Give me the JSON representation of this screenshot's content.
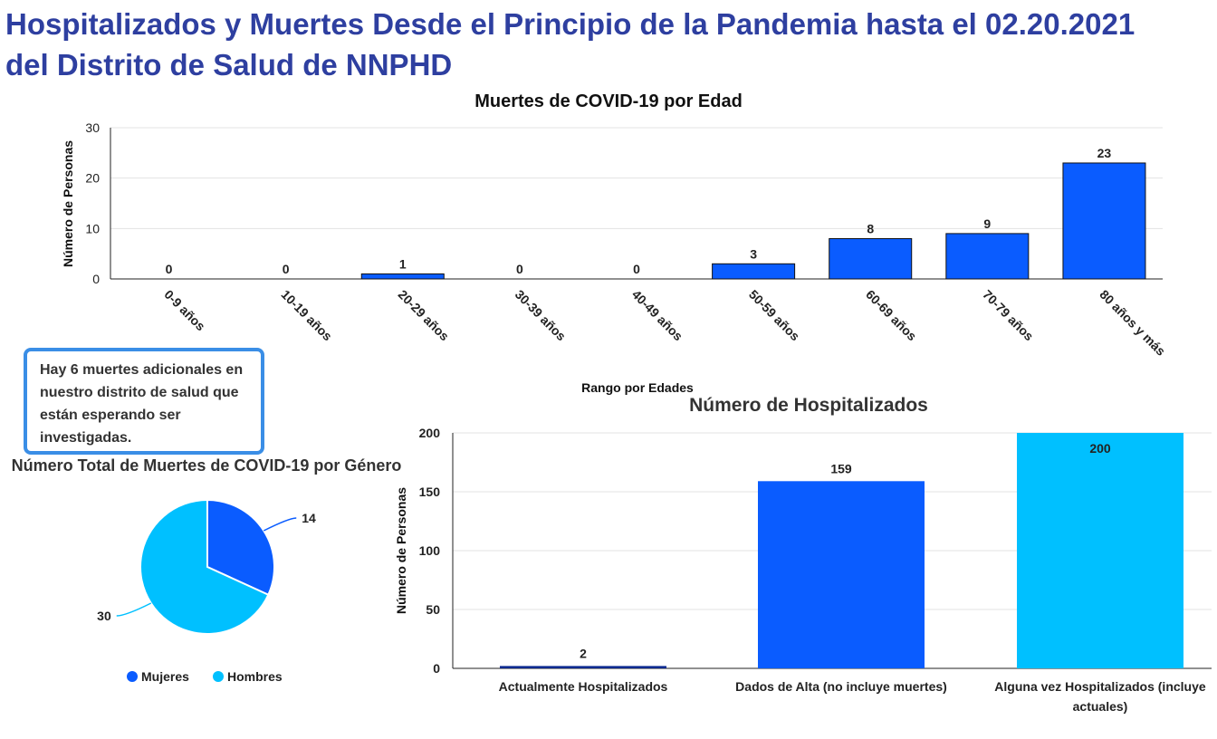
{
  "page": {
    "title_line1": "Hospitalizados y Muertes Desde el Principio de la Pandemia hasta el 02.20.2021",
    "title_line2": "del Distrito de Salud de NNPHD",
    "note_text": "Hay 6 muertes adicionales en nuestro distrito de salud que están esperando ser investigadas."
  },
  "chart_data": [
    {
      "type": "bar",
      "title": "Muertes de COVID-19 por Edad",
      "xlabel": "Rango por Edades",
      "ylabel": "Número de Personas",
      "ylim": [
        0,
        30
      ],
      "yticks": [
        0,
        10,
        20,
        30
      ],
      "categories": [
        "0-9 años",
        "10-19 años",
        "20-29 años",
        "30-39 años",
        "40-49 años",
        "50-59 años",
        "60-69 años",
        "70-79 años",
        "80 años y más"
      ],
      "values": [
        0,
        0,
        1,
        0,
        0,
        3,
        8,
        9,
        23
      ],
      "color": "#0a5cff",
      "grid": true
    },
    {
      "type": "pie",
      "title": "Número Total de Muertes de COVID-19 por Género",
      "labels": [
        "Mujeres",
        "Hombres"
      ],
      "values": [
        14,
        30
      ],
      "colors": [
        "#0a5cff",
        "#00c0ff"
      ],
      "legend": "bottom"
    },
    {
      "type": "bar",
      "title": "Número de Hospitalizados",
      "ylabel": "Número de Personas",
      "ylim": [
        0,
        200
      ],
      "yticks": [
        0,
        50,
        100,
        150,
        200
      ],
      "categories": [
        "Actualmente Hospitalizados",
        "Dados de Alta (no incluye muertes)",
        "Alguna vez Hospitalizados (incluye actuales)"
      ],
      "values": [
        2,
        159,
        200
      ],
      "colors": [
        "#0b2a8f",
        "#0a5cff",
        "#00c0ff"
      ],
      "grid": true
    }
  ]
}
